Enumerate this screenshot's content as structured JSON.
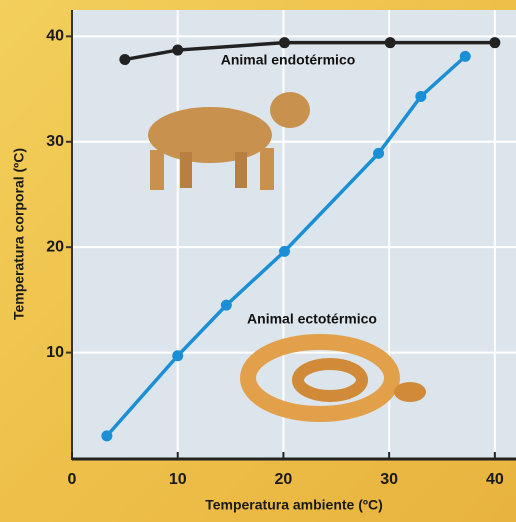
{
  "chart_data": {
    "type": "line",
    "x_label": "Temperatura ambiente (ºC)",
    "y_label": "Temperatura corporal (ºC)",
    "xlim": [
      0,
      42
    ],
    "ylim": [
      0,
      42.5
    ],
    "xticks": [
      0,
      10,
      20,
      30,
      40
    ],
    "yticks": [
      10,
      20,
      30,
      40
    ],
    "grid": true,
    "series": [
      {
        "name": "Animal endotérmico",
        "color": "#222222",
        "x": [
          5.0,
          10.0,
          20.1,
          30.1,
          40.0
        ],
        "values": [
          37.8,
          38.7,
          39.4,
          39.4,
          39.4
        ]
      },
      {
        "name": "Animal ectotérmico",
        "color": "#1b8fd6",
        "x": [
          3.3,
          10.0,
          14.6,
          20.1,
          29.0,
          33.0,
          37.2
        ],
        "values": [
          2.1,
          9.7,
          14.5,
          19.6,
          28.9,
          34.3,
          38.1
        ]
      }
    ]
  }
}
